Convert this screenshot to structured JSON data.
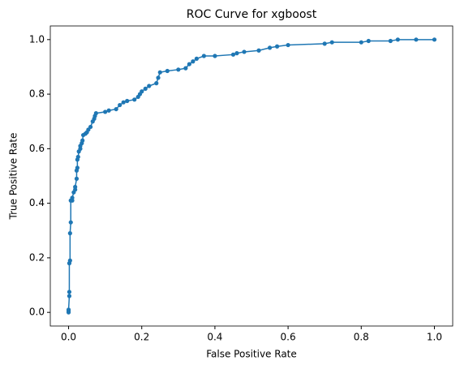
{
  "chart_data": {
    "type": "line",
    "title": "ROC Curve for xgboost",
    "x_label": "False Positive Rate",
    "y_label": "True Positive Rate",
    "color": "#1f77b4",
    "marker": true,
    "grid": false,
    "x": [
      0,
      0,
      0,
      0.002,
      0.002,
      0.002,
      0.004,
      0.004,
      0.006,
      0.006,
      0.01,
      0.01,
      0.014,
      0.018,
      0.018,
      0.022,
      0.022,
      0.024,
      0.024,
      0.026,
      0.028,
      0.032,
      0.032,
      0.036,
      0.038,
      0.04,
      0.046,
      0.05,
      0.054,
      0.06,
      0.066,
      0.07,
      0.072,
      0.075,
      0.1,
      0.11,
      0.13,
      0.14,
      0.15,
      0.16,
      0.18,
      0.19,
      0.195,
      0.2,
      0.21,
      0.22,
      0.24,
      0.245,
      0.25,
      0.27,
      0.3,
      0.32,
      0.33,
      0.34,
      0.35,
      0.37,
      0.4,
      0.45,
      0.46,
      0.48,
      0.52,
      0.55,
      0.57,
      0.6,
      0.7,
      0.72,
      0.8,
      0.82,
      0.88,
      0.9,
      0.95,
      1.0
    ],
    "values": [
      0,
      0.005,
      0.01,
      0.06,
      0.075,
      0.18,
      0.19,
      0.29,
      0.33,
      0.41,
      0.41,
      0.42,
      0.44,
      0.45,
      0.46,
      0.49,
      0.52,
      0.53,
      0.56,
      0.57,
      0.59,
      0.6,
      0.61,
      0.62,
      0.63,
      0.65,
      0.655,
      0.66,
      0.67,
      0.68,
      0.7,
      0.71,
      0.72,
      0.73,
      0.735,
      0.74,
      0.745,
      0.76,
      0.77,
      0.775,
      0.78,
      0.79,
      0.8,
      0.81,
      0.82,
      0.83,
      0.84,
      0.86,
      0.88,
      0.885,
      0.89,
      0.895,
      0.91,
      0.92,
      0.93,
      0.94,
      0.94,
      0.945,
      0.95,
      0.955,
      0.96,
      0.97,
      0.975,
      0.98,
      0.985,
      0.99,
      0.99,
      0.995,
      0.995,
      1.0,
      1.0,
      1.0
    ],
    "xlim": [
      -0.05,
      1.05
    ],
    "ylim": [
      -0.05,
      1.05
    ],
    "xticks": [
      {
        "value": 0,
        "label": "0.0"
      },
      0.2,
      0.4,
      0.6,
      0.8,
      {
        "value": 1,
        "label": "1.0"
      }
    ],
    "yticks": [
      {
        "value": 0,
        "label": "0.0"
      },
      0.2,
      0.4,
      0.6,
      0.8,
      {
        "value": 1,
        "label": "1.0"
      }
    ]
  }
}
